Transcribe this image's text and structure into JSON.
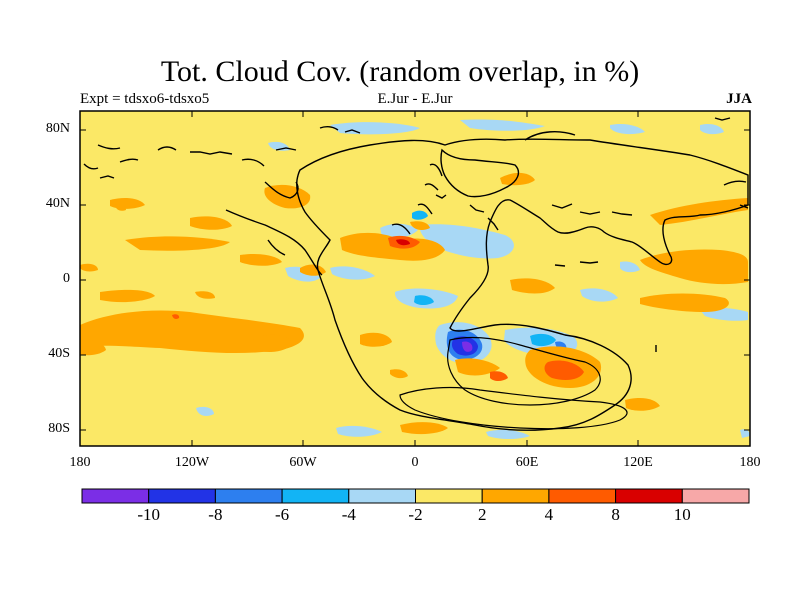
{
  "title": "Tot. Cloud Cov. (random overlap, in %)",
  "subtitle_left": "Expt = tdsxo6-tdsxo5",
  "subtitle_center": "E.Jur - E.Jur",
  "subtitle_right": "JJA",
  "lon_labels": [
    "180",
    "120W",
    "60W",
    "0",
    "60E",
    "120E",
    "180"
  ],
  "lat_labels": [
    "80N",
    "40N",
    "0",
    "40S",
    "80S"
  ],
  "colorbar": {
    "colors": [
      "#7b2ee6",
      "#2233e6",
      "#2d7fef",
      "#12b4f5",
      "#a8d8f5",
      "#fbe866",
      "#ffa700",
      "#ff5b00",
      "#d90000",
      "#f7a8a8"
    ],
    "labels": [
      "-10",
      "-8",
      "-6",
      "-4",
      "-2",
      "2",
      "4",
      "8",
      "10"
    ]
  },
  "field_colors": {
    "background": "#fbe866",
    "pos_small": "#ffa700",
    "pos_mid": "#ff5b00",
    "pos_big": "#d90000",
    "neg_small": "#a8d8f5",
    "neg_mid": "#12b4f5",
    "neg_large": "#2d7fef",
    "neg_big": "#2233e6",
    "neg_max": "#7b2ee6"
  }
}
